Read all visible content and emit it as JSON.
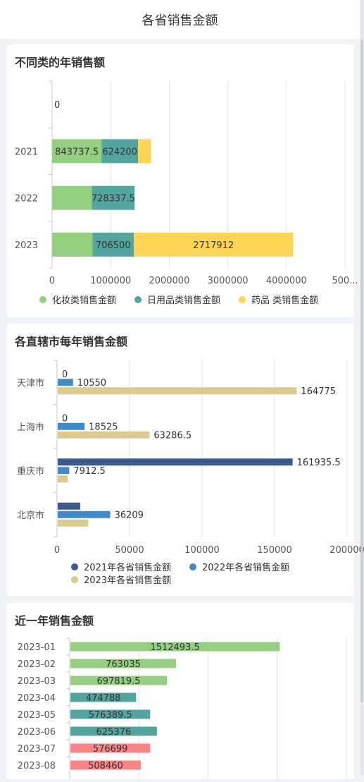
{
  "header": {
    "title": "各省销售金额"
  },
  "chart_data": [
    {
      "type": "bar",
      "orientation": "horizontal",
      "stacked": true,
      "title": "不同类的年销售额",
      "categories": [
        "",
        "2021",
        "2022",
        "2023"
      ],
      "xlim": [
        0,
        5000000
      ],
      "xticks": [
        "0",
        "1000000",
        "2000000",
        "3000000",
        "4000000",
        "500..."
      ],
      "legend_position": "bottom",
      "series": [
        {
          "name": "化妆类销售金额",
          "color": "#93cf7e",
          "values": [
            0,
            843737.5,
            680000,
            690000
          ],
          "labels": [
            "0",
            "843737.5",
            "",
            ""
          ]
        },
        {
          "name": "日用品类销售金额",
          "color": "#53a59f",
          "values": [
            0,
            624200,
            728337.5,
            706500
          ],
          "labels": [
            "",
            "624200",
            "728337.5",
            "706500"
          ]
        },
        {
          "name": "药品 类销售金额",
          "color": "#fdd555",
          "values": [
            0,
            220000,
            0,
            2717912
          ],
          "labels": [
            "",
            "",
            "",
            "2717912"
          ]
        }
      ]
    },
    {
      "type": "bar",
      "orientation": "horizontal",
      "title": "各直辖市每年销售金额",
      "categories": [
        "天津市",
        "上海市",
        "重庆市",
        "北京市"
      ],
      "xlim": [
        0,
        200000
      ],
      "xticks": [
        "0",
        "50000",
        "100000",
        "150000",
        "200000"
      ],
      "legend_position": "bottom",
      "series": [
        {
          "name": "2021年各省销售金额",
          "color": "#3b5a8f",
          "values": [
            0,
            0,
            161935.5,
            15500
          ],
          "labels": [
            "0",
            "0",
            "161935.5",
            ""
          ]
        },
        {
          "name": "2022年各省销售金额",
          "color": "#3f8ac8",
          "values": [
            10550,
            18525,
            7912.5,
            36209
          ],
          "labels": [
            "10550",
            "18525",
            "7912.5",
            "36209"
          ]
        },
        {
          "name": "2023年各省销售金额",
          "color": "#dccb8d",
          "values": [
            164775,
            63286.5,
            7000,
            21000
          ],
          "labels": [
            "164775",
            "63286.5",
            "",
            ""
          ]
        }
      ]
    },
    {
      "type": "bar",
      "orientation": "horizontal",
      "title": "近一年销售金额",
      "categories": [
        "2023-01",
        "2023-02",
        "2023-03",
        "2023-04",
        "2023-05",
        "2023-06",
        "2023-07",
        "2023-08"
      ],
      "values": [
        1512493.5,
        763035,
        697819.5,
        474788,
        576389.5,
        625376,
        576699,
        508460
      ],
      "labels": [
        "1512493.5",
        "763035",
        "697819.5",
        "474788",
        "576389.5",
        "625376",
        "576699",
        "508460"
      ],
      "colors": [
        "#93cf7e",
        "#93cf7e",
        "#93cf7e",
        "#53a59f",
        "#53a59f",
        "#53a59f",
        "#fb8585",
        "#fb8585"
      ],
      "xlim": [
        0,
        2000000
      ]
    }
  ]
}
